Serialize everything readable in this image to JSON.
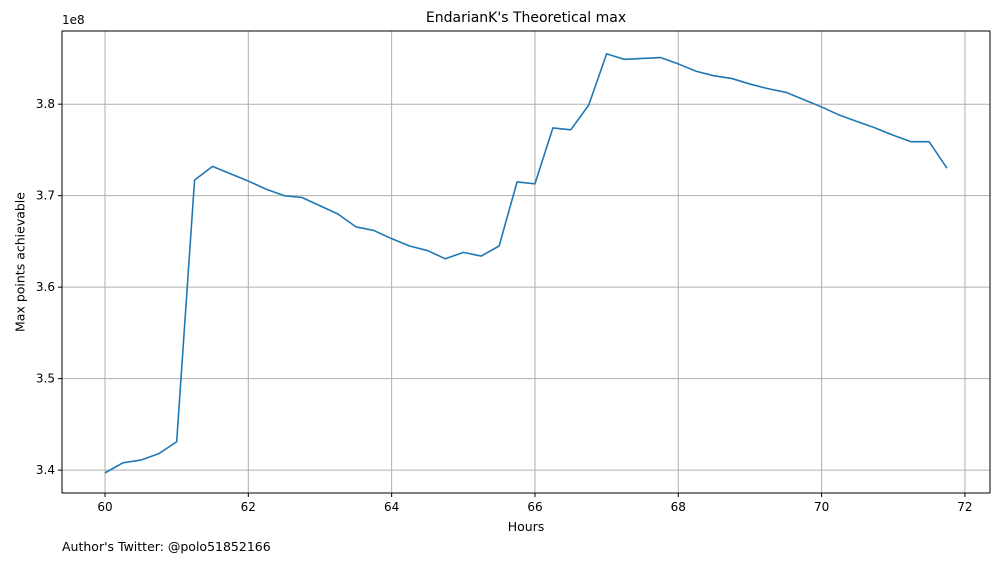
{
  "chart_data": {
    "type": "line",
    "title": "EndarianK's Theoretical max",
    "xlabel": "Hours",
    "ylabel": "Max points achievable",
    "y_offset_label": "1e8",
    "footnote": "Author's Twitter: @polo51852166",
    "xlim": [
      59.4,
      72.35
    ],
    "ylim": [
      3.375,
      3.88
    ],
    "x_ticks": [
      60,
      62,
      64,
      66,
      68,
      70,
      72
    ],
    "x_tick_labels": [
      "60",
      "62",
      "64",
      "66",
      "68",
      "70",
      "72"
    ],
    "y_ticks": [
      3.4,
      3.5,
      3.6,
      3.7,
      3.8
    ],
    "y_tick_labels": [
      "3.4",
      "3.5",
      "3.6",
      "3.7",
      "3.8"
    ],
    "grid": true,
    "line_color": "#1f77b4",
    "series": [
      {
        "x": [
          60.0,
          60.25,
          60.5,
          60.75,
          61.0,
          61.25,
          61.5,
          61.75,
          62.0,
          62.25,
          62.5,
          62.75,
          63.0,
          63.25,
          63.5,
          63.75,
          64.0,
          64.25,
          64.5,
          64.75,
          65.0,
          65.25,
          65.5,
          65.75,
          66.0,
          66.25,
          66.5,
          66.75,
          67.0,
          67.25,
          67.5,
          67.75,
          68.0,
          68.25,
          68.5,
          68.75,
          69.0,
          69.25,
          69.5,
          69.75,
          70.0,
          70.25,
          70.5,
          70.75,
          71.0,
          71.25,
          71.5,
          71.75
        ],
        "y": [
          3.397,
          3.408,
          3.411,
          3.418,
          3.431,
          3.717,
          3.732,
          3.724,
          3.716,
          3.707,
          3.7,
          3.698,
          3.689,
          3.68,
          3.666,
          3.662,
          3.653,
          3.645,
          3.64,
          3.631,
          3.638,
          3.634,
          3.645,
          3.715,
          3.713,
          3.774,
          3.772,
          3.799,
          3.855,
          3.849,
          3.85,
          3.851,
          3.844,
          3.836,
          3.831,
          3.828,
          3.822,
          3.817,
          3.813,
          3.805,
          3.797,
          3.788,
          3.781,
          3.774,
          3.766,
          3.759,
          3.759,
          3.73
        ]
      }
    ]
  }
}
